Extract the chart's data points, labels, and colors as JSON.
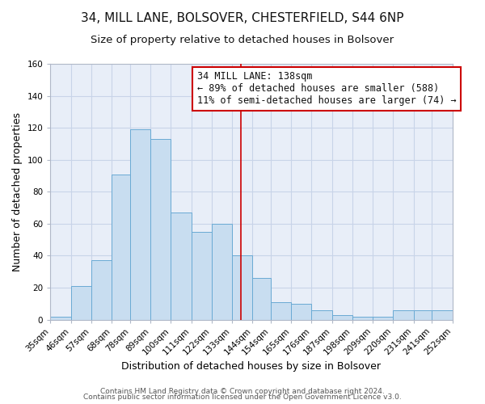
{
  "title": "34, MILL LANE, BOLSOVER, CHESTERFIELD, S44 6NP",
  "subtitle": "Size of property relative to detached houses in Bolsover",
  "xlabel": "Distribution of detached houses by size in Bolsover",
  "ylabel": "Number of detached properties",
  "bar_labels": [
    "35sqm",
    "46sqm",
    "57sqm",
    "68sqm",
    "78sqm",
    "89sqm",
    "100sqm",
    "111sqm",
    "122sqm",
    "133sqm",
    "144sqm",
    "154sqm",
    "165sqm",
    "176sqm",
    "187sqm",
    "198sqm",
    "209sqm",
    "220sqm",
    "231sqm",
    "241sqm",
    "252sqm"
  ],
  "bin_edges": [
    35,
    46,
    57,
    68,
    78,
    89,
    100,
    111,
    122,
    133,
    144,
    154,
    165,
    176,
    187,
    198,
    209,
    220,
    231,
    241,
    252
  ],
  "bar_heights": [
    2,
    21,
    37,
    91,
    119,
    113,
    67,
    55,
    60,
    40,
    26,
    11,
    10,
    6,
    3,
    2,
    2,
    6,
    6,
    6
  ],
  "bar_color_fill": "#c8ddf0",
  "bar_color_edge": "#6aaad4",
  "property_line_x": 138,
  "property_line_color": "#cc0000",
  "annotation_line1": "34 MILL LANE: 138sqm",
  "annotation_line2": "← 89% of detached houses are smaller (588)",
  "annotation_line3": "11% of semi-detached houses are larger (74) →",
  "ylim": [
    0,
    160
  ],
  "yticks": [
    0,
    20,
    40,
    60,
    80,
    100,
    120,
    140,
    160
  ],
  "grid_color": "#c8d4e8",
  "background_color": "#e8eef8",
  "footer_line1": "Contains HM Land Registry data © Crown copyright and database right 2024.",
  "footer_line2": "Contains public sector information licensed under the Open Government Licence v3.0.",
  "title_fontsize": 11,
  "subtitle_fontsize": 9.5,
  "xlabel_fontsize": 9,
  "ylabel_fontsize": 9,
  "tick_fontsize": 7.5,
  "annotation_fontsize": 8.5,
  "footer_fontsize": 6.5
}
